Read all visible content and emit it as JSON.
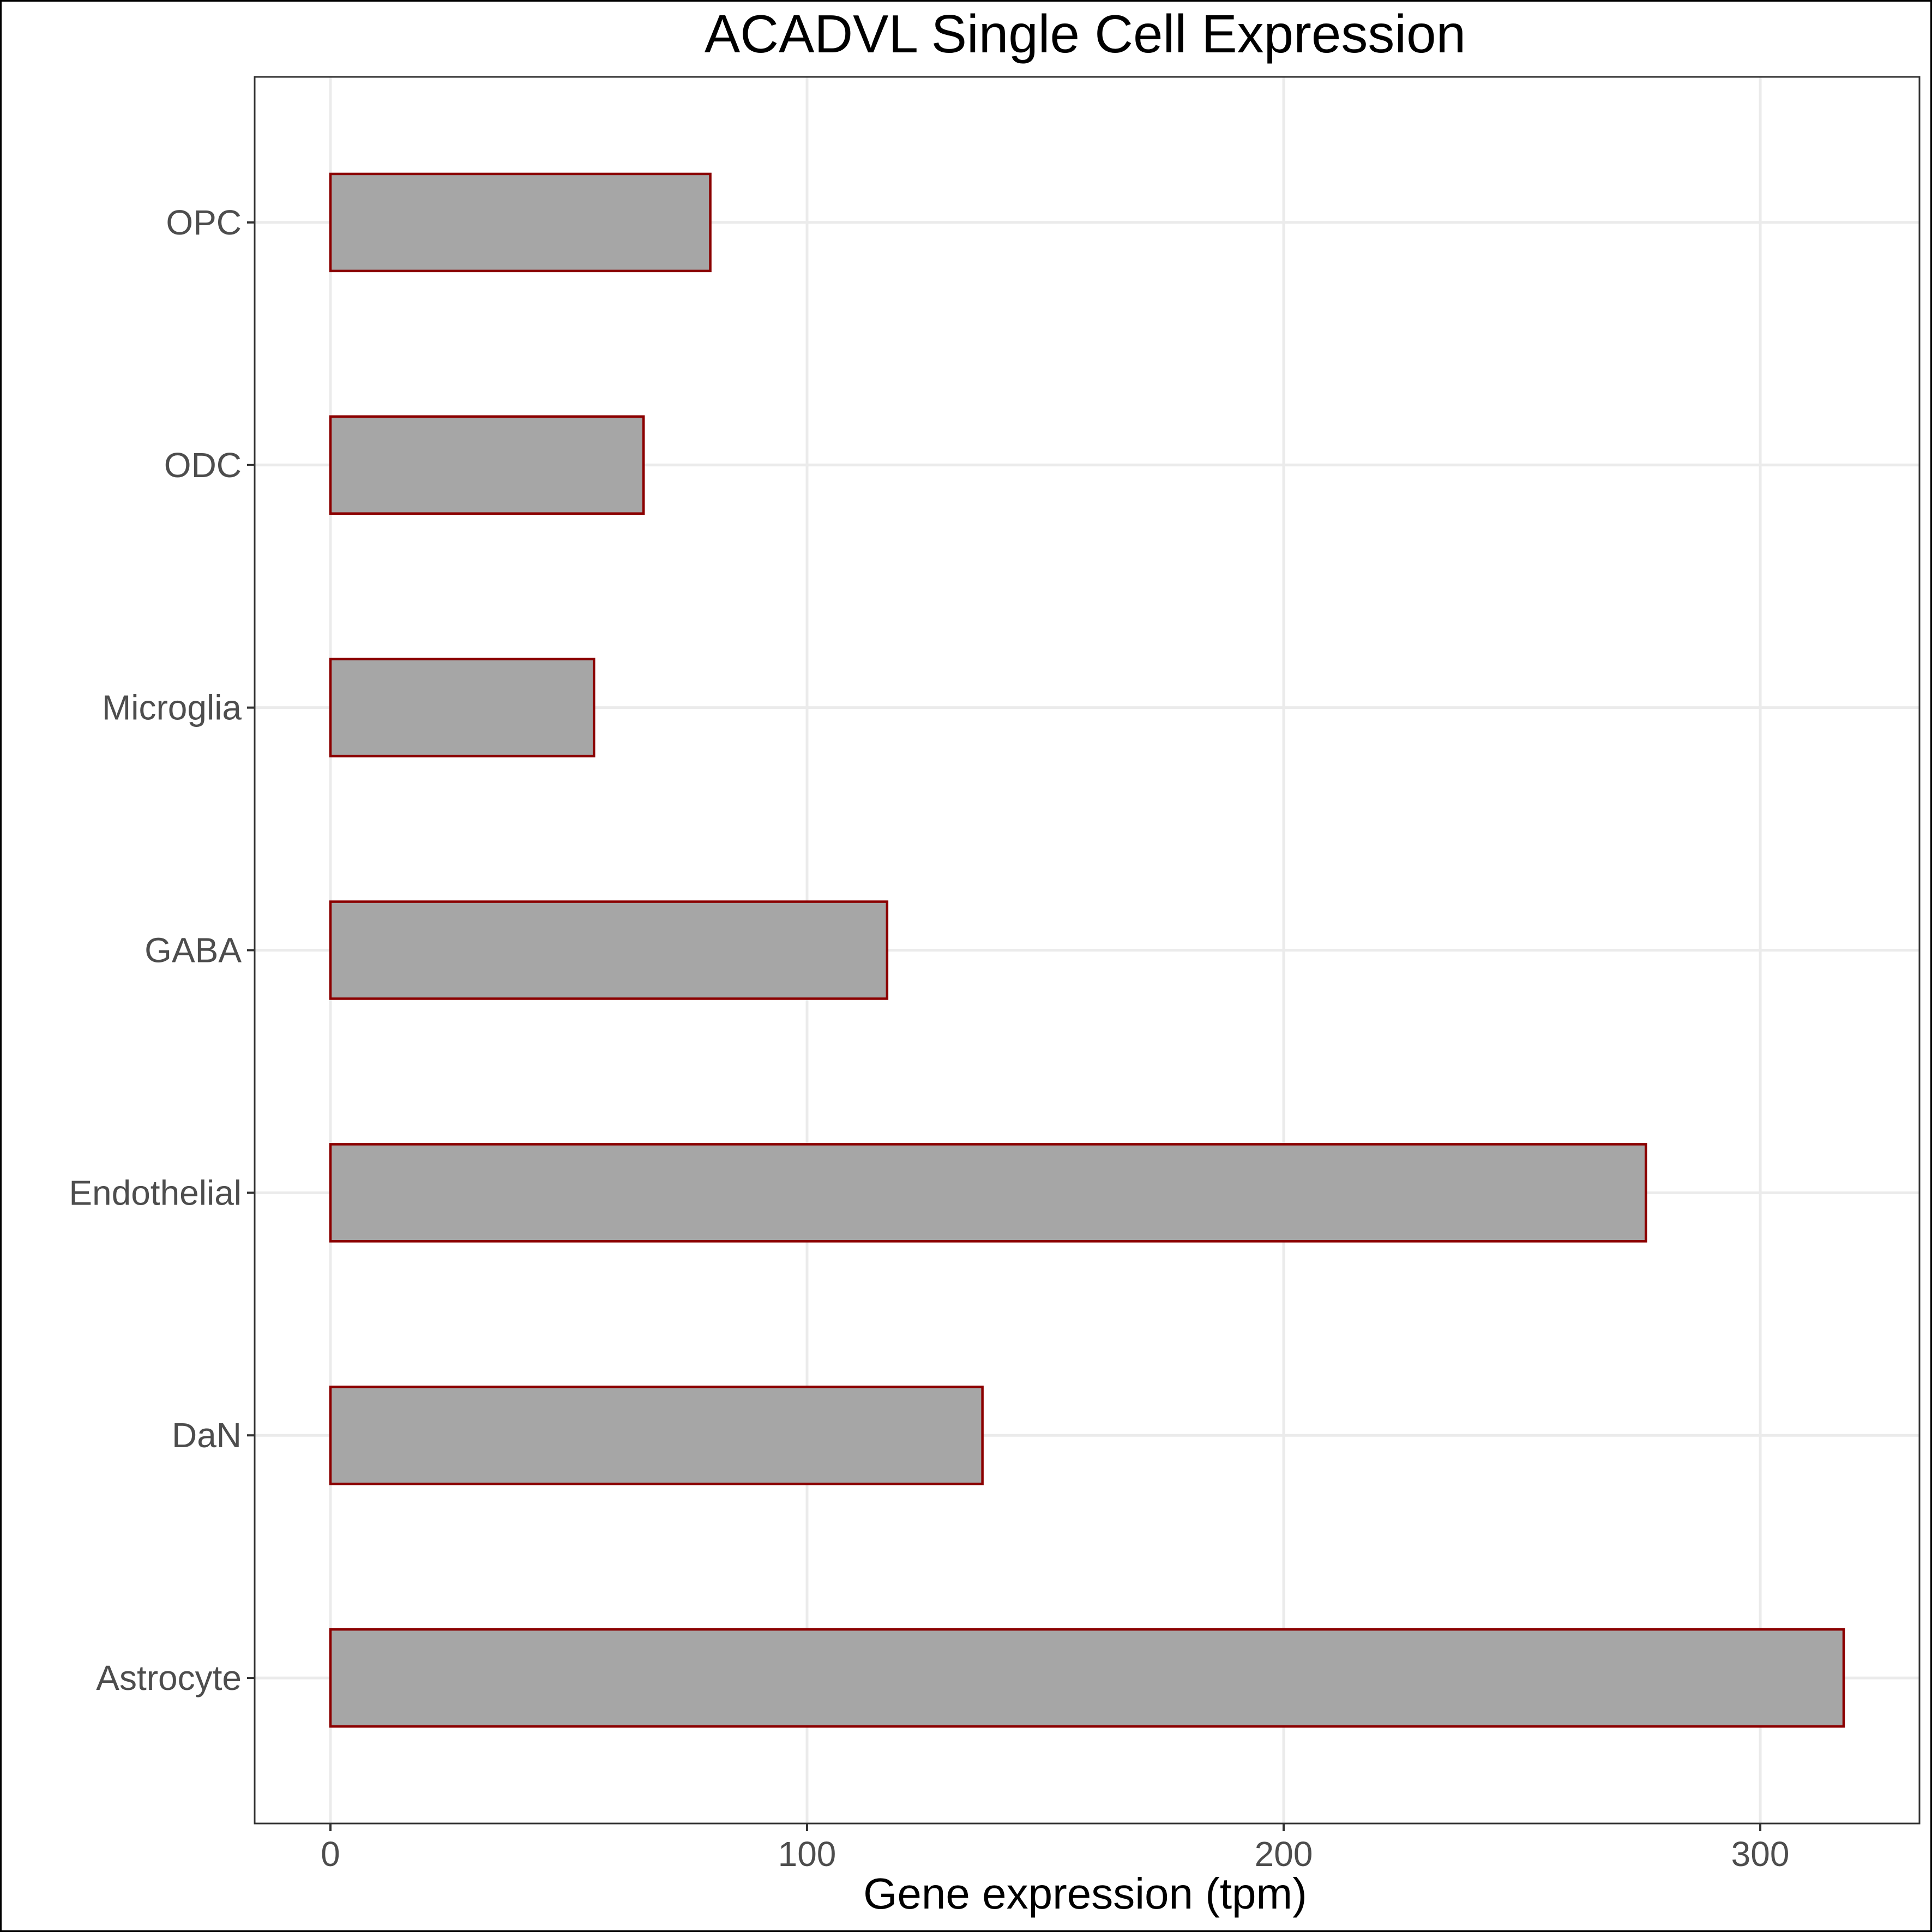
{
  "chart_data": {
    "type": "bar",
    "orientation": "horizontal",
    "title": "ACADVL Single Cell Expression",
    "xlabel": "Gene expression (tpm)",
    "ylabel": "",
    "categories": [
      "Astrocyte",
      "DaN",
      "Endothelial",
      "GABA",
      "Microglia",
      "ODC",
      "OPC"
    ],
    "values": [
      317.5,
      136.8,
      276.0,
      116.8,
      55.3,
      65.7,
      79.7
    ],
    "xticks": [
      0,
      100,
      200,
      300
    ],
    "xlim": [
      -15.9,
      333.4
    ],
    "grid": true,
    "legend": "none",
    "colors": {
      "bar_fill": "#a6a6a6",
      "bar_outline": "#8b0000",
      "grid": "#ebebeb",
      "tick_text": "#4d4d4d"
    }
  }
}
